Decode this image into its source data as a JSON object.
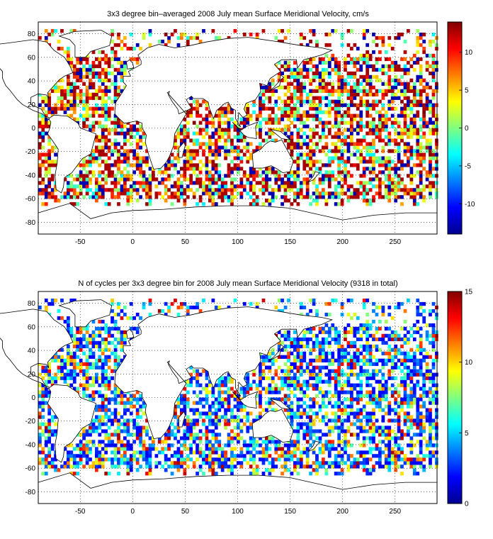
{
  "chart_data": [
    {
      "type": "heatmap",
      "title": "3x3 degree bin–averaged 2008 July mean Surface Meridional Velocity, cm/s",
      "xlabel": "",
      "ylabel": "",
      "xlim": [
        -90,
        290
      ],
      "ylim": [
        -90,
        90
      ],
      "x_ticks": [
        "-50",
        "0",
        "50",
        "100",
        "150",
        "200",
        "250"
      ],
      "y_ticks": [
        "80",
        "60",
        "40",
        "20",
        "0",
        "-20",
        "-40",
        "-60",
        "-80"
      ],
      "colorbar": {
        "range": [
          -14,
          14
        ],
        "ticks": [
          "10",
          "5",
          "0",
          "-5",
          "-10"
        ],
        "colormap": "jet"
      },
      "grid": true,
      "bin_size_deg": 3
    },
    {
      "type": "heatmap",
      "title": "N of cycles per 3x3 degree bin for 2008 July mean Surface Meridional Velocity (9318 in total)",
      "xlabel": "",
      "ylabel": "",
      "xlim": [
        -90,
        290
      ],
      "ylim": [
        -90,
        90
      ],
      "x_ticks": [
        "-50",
        "0",
        "50",
        "100",
        "150",
        "200",
        "250"
      ],
      "y_ticks": [
        "80",
        "60",
        "40",
        "20",
        "0",
        "-20",
        "-40",
        "-60",
        "-80"
      ],
      "colorbar": {
        "range": [
          0,
          15
        ],
        "ticks": [
          "15",
          "10",
          "5",
          "0"
        ],
        "colormap": "jet"
      },
      "grid": true,
      "bin_size_deg": 3
    }
  ]
}
